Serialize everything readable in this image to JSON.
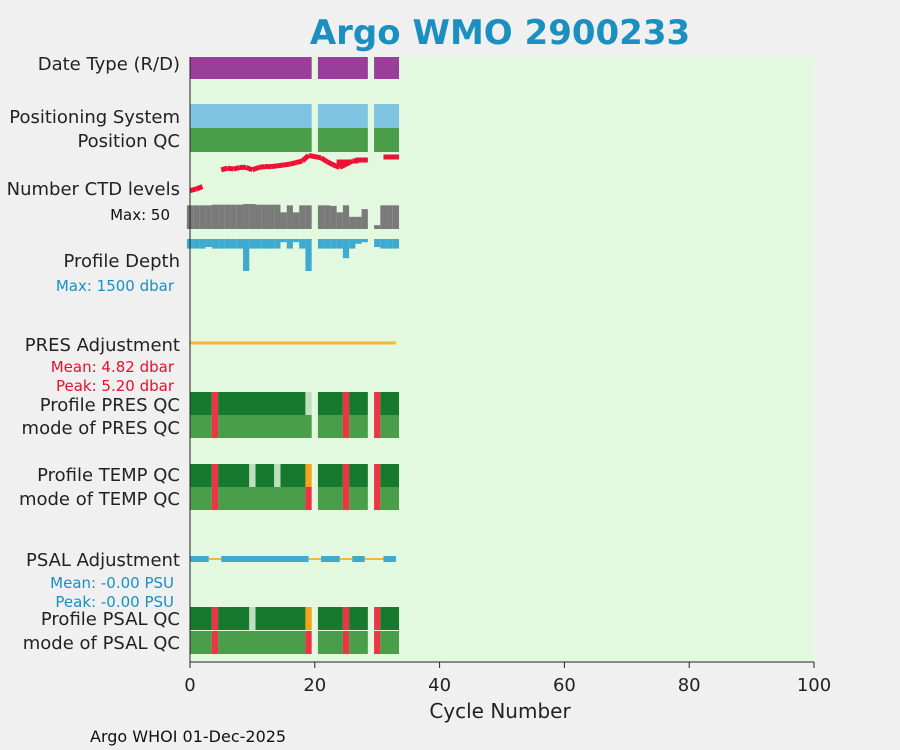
{
  "chart_data": {
    "type": "heatmap",
    "title": "Argo WMO 2900233",
    "xlabel": "Cycle Number",
    "xlim": [
      0,
      100
    ],
    "x_ticks": [
      0,
      20,
      40,
      60,
      80,
      100
    ],
    "footer": "Argo WHOI 01-Dec-2025",
    "colors": {
      "title": "#1a8fc0",
      "plot_bg": "#e3f9df",
      "date_type": "#9b3d9b",
      "positioning_system": "#7fc4e0",
      "qc_good": "#4a9e4a",
      "qc_profile_a": "#167a2e",
      "qc_probably_good": "#bfe0bf",
      "qc_bad": "#ee3344",
      "qc_questionable": "#f6a11a",
      "ctd_levels": "#7a7a7a",
      "ctd_levels_line": "#ee1133",
      "profile_depth": "#3faad0",
      "pres_adjustment": "#f5b63a",
      "psal_adjustment": "#3faad0",
      "psal_adjustment_alt": "#f5b63a"
    },
    "rows": {
      "date_type": {
        "label": "Date Type (R/D)",
        "segments": [
          [
            0,
            19.5
          ],
          [
            20.5,
            28.5
          ],
          [
            29.5,
            33.5
          ]
        ]
      },
      "positioning_system": {
        "label": "Positioning System",
        "segments": [
          [
            0,
            19.5
          ],
          [
            20.5,
            28.5
          ],
          [
            29.5,
            33.5
          ]
        ]
      },
      "position_qc": {
        "label": "Position QC",
        "segments": [
          [
            0,
            19.5
          ],
          [
            20.5,
            28.5
          ],
          [
            29.5,
            33.5
          ]
        ]
      },
      "ctd_levels": {
        "label": "Number CTD levels",
        "max_label": "Max: 50",
        "max": 50,
        "cycles": [
          0,
          1,
          2,
          3,
          4,
          5,
          6,
          7,
          8,
          9,
          10,
          11,
          12,
          13,
          14,
          15,
          16,
          17,
          18,
          19,
          21,
          22,
          23,
          24,
          25,
          26,
          27,
          28,
          30,
          31,
          32,
          33
        ],
        "values": [
          37,
          37,
          37,
          37,
          38,
          38,
          38,
          38,
          38,
          39,
          39,
          38,
          38,
          38,
          38,
          26,
          37,
          26,
          37,
          37,
          37,
          37,
          36,
          26,
          37,
          19,
          19,
          31,
          6,
          37,
          37,
          37
        ],
        "line_points": [
          [
            0,
            8
          ],
          [
            1,
            10
          ],
          [
            2,
            13
          ],
          [
            5,
            34
          ],
          [
            6,
            36
          ],
          [
            7,
            35
          ],
          [
            8,
            37
          ],
          [
            9,
            37
          ],
          [
            10,
            34
          ],
          [
            11,
            37
          ],
          [
            12,
            38
          ],
          [
            13,
            38
          ],
          [
            14,
            39
          ],
          [
            15,
            40
          ],
          [
            16,
            41
          ],
          [
            17,
            43
          ],
          [
            18,
            45
          ],
          [
            19,
            52
          ],
          [
            21,
            49
          ],
          [
            22,
            44
          ],
          [
            23,
            40
          ],
          [
            24,
            37
          ],
          [
            26,
            45
          ],
          [
            27,
            45
          ],
          [
            31,
            50
          ],
          [
            32,
            50
          ]
        ]
      },
      "profile_depth": {
        "label": "Profile Depth",
        "max_label": "Max: 1500 dbar",
        "max": 1500,
        "cycles": [
          0,
          1,
          2,
          3,
          4,
          5,
          6,
          7,
          8,
          9,
          10,
          11,
          12,
          13,
          14,
          15,
          16,
          17,
          18,
          19,
          21,
          22,
          23,
          24,
          25,
          26,
          27,
          28,
          30,
          31,
          32,
          33
        ],
        "values": [
          300,
          300,
          300,
          250,
          300,
          300,
          300,
          300,
          300,
          1000,
          300,
          300,
          300,
          300,
          300,
          100,
          300,
          100,
          300,
          1000,
          300,
          300,
          300,
          300,
          600,
          300,
          150,
          100,
          250,
          300,
          300,
          300
        ]
      },
      "pres_adjustment": {
        "label": "PRES Adjustment",
        "mean_label": "Mean: 4.82 dbar",
        "peak_label": "Peak: 5.20 dbar",
        "x_range": [
          0,
          33
        ]
      },
      "profile_pres_qc": {
        "label": "Profile PRES QC",
        "segments": [
          {
            "x": [
              0,
              3.5
            ],
            "q": "a"
          },
          {
            "x": [
              3.5,
              4.5
            ],
            "q": "bad"
          },
          {
            "x": [
              4.5,
              18.5
            ],
            "q": "a"
          },
          {
            "x": [
              18.5,
              19.5
            ],
            "q": "probably_good"
          },
          {
            "x": [
              20.5,
              24.5
            ],
            "q": "a"
          },
          {
            "x": [
              24.5,
              25.5
            ],
            "q": "bad"
          },
          {
            "x": [
              25.5,
              28.5
            ],
            "q": "a"
          },
          {
            "x": [
              29.5,
              30.5
            ],
            "q": "bad"
          },
          {
            "x": [
              30.5,
              33.5
            ],
            "q": "a"
          }
        ]
      },
      "mode_pres_qc": {
        "label": "mode of PRES QC",
        "segments": [
          {
            "x": [
              0,
              3.5
            ],
            "q": "good"
          },
          {
            "x": [
              3.5,
              4.5
            ],
            "q": "bad"
          },
          {
            "x": [
              4.5,
              19.5
            ],
            "q": "good"
          },
          {
            "x": [
              20.5,
              24.5
            ],
            "q": "good"
          },
          {
            "x": [
              24.5,
              25.5
            ],
            "q": "bad"
          },
          {
            "x": [
              25.5,
              28.5
            ],
            "q": "good"
          },
          {
            "x": [
              29.5,
              30.5
            ],
            "q": "bad"
          },
          {
            "x": [
              30.5,
              33.5
            ],
            "q": "good"
          }
        ]
      },
      "profile_temp_qc": {
        "label": "Profile TEMP QC",
        "segments": [
          {
            "x": [
              0,
              3.5
            ],
            "q": "a"
          },
          {
            "x": [
              3.5,
              4.5
            ],
            "q": "bad"
          },
          {
            "x": [
              4.5,
              9.5
            ],
            "q": "a"
          },
          {
            "x": [
              9.5,
              10.5
            ],
            "q": "probably_good"
          },
          {
            "x": [
              10.5,
              13.5
            ],
            "q": "a"
          },
          {
            "x": [
              13.5,
              14.5
            ],
            "q": "probably_good"
          },
          {
            "x": [
              14.5,
              18.5
            ],
            "q": "a"
          },
          {
            "x": [
              18.5,
              19.5
            ],
            "q": "questionable"
          },
          {
            "x": [
              20.5,
              24.5
            ],
            "q": "a"
          },
          {
            "x": [
              24.5,
              25.5
            ],
            "q": "bad"
          },
          {
            "x": [
              25.5,
              28.5
            ],
            "q": "a"
          },
          {
            "x": [
              29.5,
              30.5
            ],
            "q": "bad"
          },
          {
            "x": [
              30.5,
              33.5
            ],
            "q": "a"
          }
        ]
      },
      "mode_temp_qc": {
        "label": "mode of TEMP QC",
        "segments": [
          {
            "x": [
              0,
              3.5
            ],
            "q": "good"
          },
          {
            "x": [
              3.5,
              4.5
            ],
            "q": "bad"
          },
          {
            "x": [
              4.5,
              18.5
            ],
            "q": "good"
          },
          {
            "x": [
              18.5,
              19.5
            ],
            "q": "bad"
          },
          {
            "x": [
              20.5,
              24.5
            ],
            "q": "good"
          },
          {
            "x": [
              24.5,
              25.5
            ],
            "q": "bad"
          },
          {
            "x": [
              25.5,
              28.5
            ],
            "q": "good"
          },
          {
            "x": [
              29.5,
              30.5
            ],
            "q": "bad"
          },
          {
            "x": [
              30.5,
              33.5
            ],
            "q": "good"
          }
        ]
      },
      "psal_adjustment": {
        "label": "PSAL Adjustment",
        "mean_label": "Mean: -0.00 PSU",
        "peak_label": "Peak: -0.00 PSU",
        "segments": [
          {
            "x": [
              0,
              3
            ],
            "c": "main"
          },
          {
            "x": [
              3,
              5
            ],
            "c": "alt"
          },
          {
            "x": [
              5,
              19
            ],
            "c": "main"
          },
          {
            "x": [
              19,
              21
            ],
            "c": "alt"
          },
          {
            "x": [
              21,
              24
            ],
            "c": "main"
          },
          {
            "x": [
              24,
              26
            ],
            "c": "alt"
          },
          {
            "x": [
              26,
              28
            ],
            "c": "main"
          },
          {
            "x": [
              28,
              31
            ],
            "c": "alt"
          },
          {
            "x": [
              31,
              33
            ],
            "c": "main"
          }
        ]
      },
      "profile_psal_qc": {
        "label": "Profile PSAL QC",
        "segments": [
          {
            "x": [
              0,
              3.5
            ],
            "q": "a"
          },
          {
            "x": [
              3.5,
              4.5
            ],
            "q": "bad"
          },
          {
            "x": [
              4.5,
              9.5
            ],
            "q": "a"
          },
          {
            "x": [
              9.5,
              10.5
            ],
            "q": "probably_good"
          },
          {
            "x": [
              10.5,
              18.5
            ],
            "q": "a"
          },
          {
            "x": [
              18.5,
              19.5
            ],
            "q": "questionable"
          },
          {
            "x": [
              20.5,
              24.5
            ],
            "q": "a"
          },
          {
            "x": [
              24.5,
              25.5
            ],
            "q": "bad"
          },
          {
            "x": [
              25.5,
              28.5
            ],
            "q": "a"
          },
          {
            "x": [
              29.5,
              30.5
            ],
            "q": "bad"
          },
          {
            "x": [
              30.5,
              33.5
            ],
            "q": "a"
          }
        ]
      },
      "mode_psal_qc": {
        "label": "mode of PSAL QC",
        "segments": [
          {
            "x": [
              0,
              3.5
            ],
            "q": "good"
          },
          {
            "x": [
              3.5,
              4.5
            ],
            "q": "bad"
          },
          {
            "x": [
              4.5,
              18.5
            ],
            "q": "good"
          },
          {
            "x": [
              18.5,
              19.5
            ],
            "q": "bad"
          },
          {
            "x": [
              20.5,
              24.5
            ],
            "q": "good"
          },
          {
            "x": [
              24.5,
              25.5
            ],
            "q": "bad"
          },
          {
            "x": [
              25.5,
              28.5
            ],
            "q": "good"
          },
          {
            "x": [
              29.5,
              30.5
            ],
            "q": "bad"
          },
          {
            "x": [
              30.5,
              33.5
            ],
            "q": "good"
          }
        ]
      }
    }
  }
}
